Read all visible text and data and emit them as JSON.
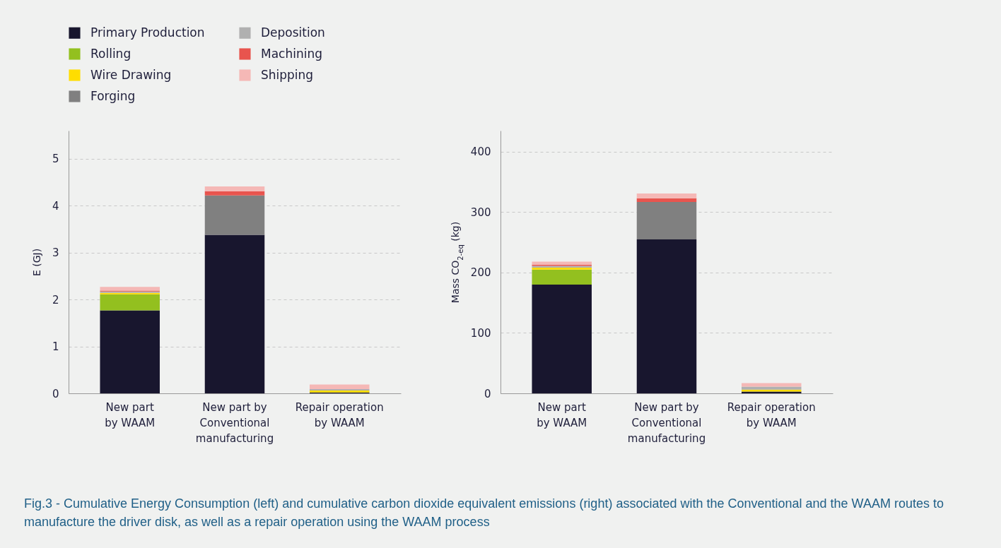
{
  "chart_data": [
    {
      "type": "bar",
      "stacked": true,
      "ylabel": "E (GJ)",
      "categories": [
        "New part\nby WAAM",
        "New part by\nConventional\nmanufacturing",
        "Repair operation\nby WAAM"
      ],
      "ylim": [
        0,
        5.6
      ],
      "yticks": [
        0,
        1,
        2,
        3,
        4,
        5
      ],
      "grid": "y",
      "legend": "top left",
      "series": [
        {
          "name": "Primary Production",
          "color": "#18162e",
          "values": [
            1.77,
            3.38,
            0.02
          ]
        },
        {
          "name": "Rolling",
          "color": "#93c01f",
          "values": [
            0.34,
            0,
            0
          ]
        },
        {
          "name": "Wire Drawing",
          "color": "#ffdd00",
          "values": [
            0.03,
            0,
            0.04
          ]
        },
        {
          "name": "Forging",
          "color": "#808080",
          "values": [
            0,
            0.84,
            0
          ]
        },
        {
          "name": "Deposition",
          "color": "#b0b0b0",
          "values": [
            0.03,
            0,
            0.03
          ]
        },
        {
          "name": "Machining",
          "color": "#e8544e",
          "values": [
            0.02,
            0.09,
            0
          ]
        },
        {
          "name": "Shipping",
          "color": "#f5b8b6",
          "values": [
            0.08,
            0.1,
            0.1
          ]
        }
      ]
    },
    {
      "type": "bar",
      "stacked": true,
      "ylabel": "Mass CO$_{2-eq}$ (kg)",
      "categories": [
        "New part\nby WAAM",
        "New part by\nConventional\nmanufacturing",
        "Repair operation\nby WAAM"
      ],
      "ylim": [
        0,
        435
      ],
      "yticks": [
        0,
        100,
        200,
        300,
        400
      ],
      "grid": "y",
      "annotations": [
        "Fig.3 - Cumulative Energy Consumption (left) and cumulative carbon dioxide equivalent emissions (right) associated with the Conventional and the WAAM routes to manufacture the driver disk, as well as a repair operation using the WAAM process"
      ],
      "series": [
        {
          "name": "Primary Production",
          "color": "#18162e",
          "values": [
            180,
            255,
            3
          ]
        },
        {
          "name": "Rolling",
          "color": "#93c01f",
          "values": [
            25,
            0,
            0
          ]
        },
        {
          "name": "Wire Drawing",
          "color": "#ffdd00",
          "values": [
            3,
            0,
            3
          ]
        },
        {
          "name": "Forging",
          "color": "#808080",
          "values": [
            0,
            62,
            0
          ]
        },
        {
          "name": "Deposition",
          "color": "#b0b0b0",
          "values": [
            3,
            0,
            5
          ]
        },
        {
          "name": "Machining",
          "color": "#e8544e",
          "values": [
            2,
            6,
            0
          ]
        },
        {
          "name": "Shipping",
          "color": "#f5b8b6",
          "values": [
            5,
            8,
            6
          ]
        }
      ]
    }
  ]
}
